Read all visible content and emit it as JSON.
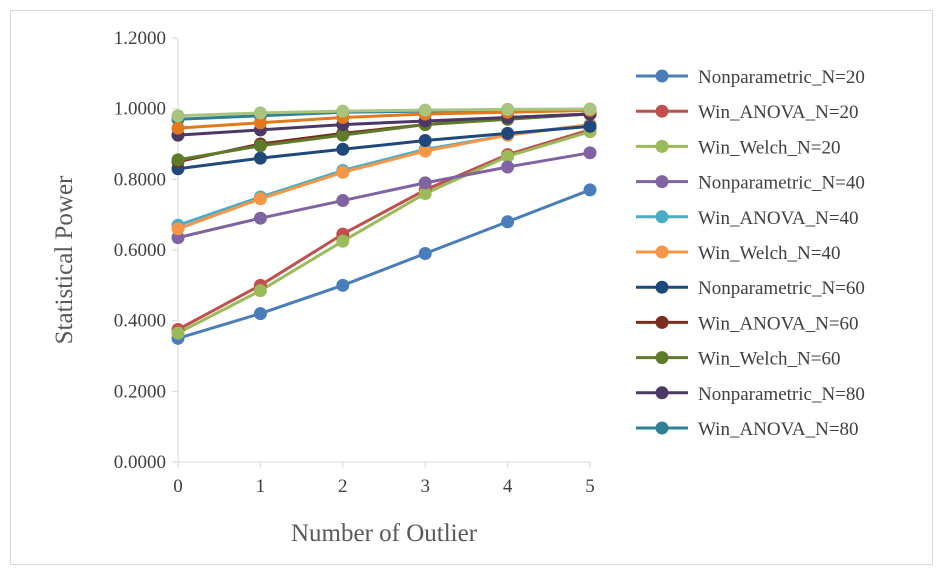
{
  "chart_data": {
    "type": "line",
    "title": "",
    "xlabel": "Number of Outlier",
    "ylabel": "Statistical Power",
    "x": [
      0,
      1,
      2,
      3,
      4,
      5
    ],
    "x_ticks": [
      "0",
      "1",
      "2",
      "3",
      "4",
      "5"
    ],
    "ylim": [
      0,
      1.2
    ],
    "y_ticks": [
      "0.0000",
      "0.2000",
      "0.4000",
      "0.6000",
      "0.8000",
      "1.0000",
      "1.2000"
    ],
    "grid": false,
    "legend_position": "right",
    "series": [
      {
        "name": "Nonparametric_N=20",
        "color": "#4a7ebb",
        "values": [
          0.35,
          0.42,
          0.5,
          0.59,
          0.68,
          0.77
        ]
      },
      {
        "name": "Win_ANOVA_N=20",
        "color": "#c0504d",
        "values": [
          0.375,
          0.5,
          0.645,
          0.77,
          0.87,
          0.94
        ]
      },
      {
        "name": "Win_Welch_N=20",
        "color": "#9bbb59",
        "values": [
          0.365,
          0.485,
          0.625,
          0.76,
          0.865,
          0.935
        ]
      },
      {
        "name": "Nonparametric_N=40",
        "color": "#8064a2",
        "values": [
          0.635,
          0.69,
          0.74,
          0.79,
          0.835,
          0.875
        ]
      },
      {
        "name": "Win_ANOVA_N=40",
        "color": "#4bacc6",
        "values": [
          0.67,
          0.75,
          0.825,
          0.885,
          0.925,
          0.955
        ]
      },
      {
        "name": "Win_Welch_N=40",
        "color": "#f79646",
        "values": [
          0.66,
          0.745,
          0.82,
          0.88,
          0.925,
          0.955
        ]
      },
      {
        "name": "Nonparametric_N=60",
        "color": "#1f497d",
        "values": [
          0.83,
          0.86,
          0.885,
          0.91,
          0.93,
          0.95
        ]
      },
      {
        "name": "Win_ANOVA_N=60",
        "color": "#7b2c1f",
        "values": [
          0.85,
          0.9,
          0.93,
          0.955,
          0.975,
          0.985
        ]
      },
      {
        "name": "Win_Welch_N=60",
        "color": "#5e7a2b",
        "values": [
          0.855,
          0.895,
          0.925,
          0.955,
          0.97,
          0.985
        ]
      },
      {
        "name": "Nonparametric_N=80",
        "color": "#4b3867",
        "values": [
          0.925,
          0.94,
          0.955,
          0.965,
          0.975,
          0.985
        ]
      },
      {
        "name": "Win_ANOVA_N=80",
        "color": "#2f7f97",
        "values": [
          0.97,
          0.98,
          0.99,
          0.993,
          0.996,
          0.998
        ]
      },
      {
        "name": "",
        "color": "#e3791d",
        "values": [
          0.945,
          0.96,
          0.975,
          0.985,
          0.99,
          0.995
        ]
      },
      {
        "name": "",
        "color": "#a9c47f",
        "values": [
          0.98,
          0.988,
          0.993,
          0.996,
          0.998,
          0.999
        ]
      }
    ]
  }
}
